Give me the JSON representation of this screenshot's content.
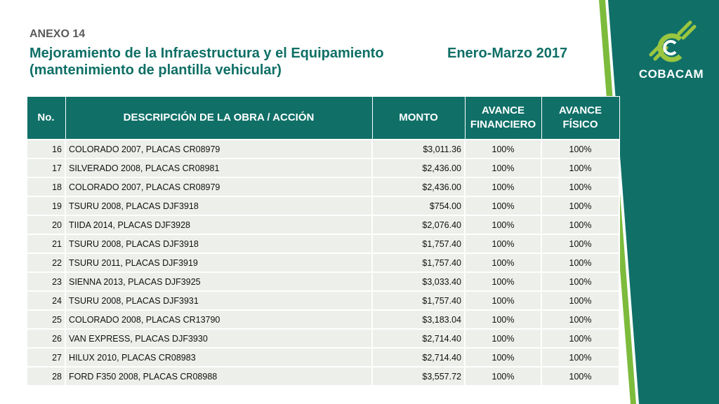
{
  "header": {
    "annex": "ANEXO 14",
    "title_line1": "Mejoramiento de la Infraestructura y el Equipamiento",
    "title_line2": "(mantenimiento de plantilla vehicular)",
    "period": "Enero-Marzo 2017"
  },
  "brand": {
    "name": "COBACAM",
    "logo_icon": "cobacam-logo-icon",
    "colors": {
      "primary": "#107068",
      "accent": "#9ac640",
      "row_bg": "#ecefea"
    }
  },
  "table": {
    "headers": {
      "no": "No.",
      "desc": "DESCRIPCIÓN DE LA OBRA / ACCIÓN",
      "monto": "MONTO",
      "fin_line1": "AVANCE",
      "fin_line2": "FINANCIERO",
      "fis_line1": "AVANCE",
      "fis_line2": "FÍSICO"
    },
    "rows": [
      {
        "no": "16",
        "desc": "COLORADO 2007, PLACAS CR08979",
        "monto": "$3,011.36",
        "fin": "100%",
        "fis": "100%"
      },
      {
        "no": "17",
        "desc": "SILVERADO 2008, PLACAS CR08981",
        "monto": "$2,436.00",
        "fin": "100%",
        "fis": "100%"
      },
      {
        "no": "18",
        "desc": "COLORADO 2007, PLACAS CR08979",
        "monto": "$2,436.00",
        "fin": "100%",
        "fis": "100%"
      },
      {
        "no": "19",
        "desc": "TSURU 2008, PLACAS DJF3918",
        "monto": "$754.00",
        "fin": "100%",
        "fis": "100%"
      },
      {
        "no": "20",
        "desc": "TIIDA 2014, PLACAS DJF3928",
        "monto": "$2,076.40",
        "fin": "100%",
        "fis": "100%"
      },
      {
        "no": "21",
        "desc": "TSURU 2008, PLACAS DJF3918",
        "monto": "$1,757.40",
        "fin": "100%",
        "fis": "100%"
      },
      {
        "no": "22",
        "desc": "TSURU 2011, PLACAS DJF3919",
        "monto": "$1,757.40",
        "fin": "100%",
        "fis": "100%"
      },
      {
        "no": "23",
        "desc": "SIENNA 2013, PLACAS DJF3925",
        "monto": "$3,033.40",
        "fin": "100%",
        "fis": "100%"
      },
      {
        "no": "24",
        "desc": "TSURU 2008, PLACAS DJF3931",
        "monto": "$1,757.40",
        "fin": "100%",
        "fis": "100%"
      },
      {
        "no": "25",
        "desc": "COLORADO 2008, PLACAS CR13790",
        "monto": "$3,183.04",
        "fin": "100%",
        "fis": "100%"
      },
      {
        "no": "26",
        "desc": "VAN EXPRESS, PLACAS DJF3930",
        "monto": "$2,714.40",
        "fin": "100%",
        "fis": "100%"
      },
      {
        "no": "27",
        "desc": "HILUX 2010, PLACAS CR08983",
        "monto": "$2,714.40",
        "fin": "100%",
        "fis": "100%"
      },
      {
        "no": "28",
        "desc": "FORD F350 2008, PLACAS CR08988",
        "monto": "$3,557.72",
        "fin": "100%",
        "fis": "100%"
      }
    ]
  }
}
